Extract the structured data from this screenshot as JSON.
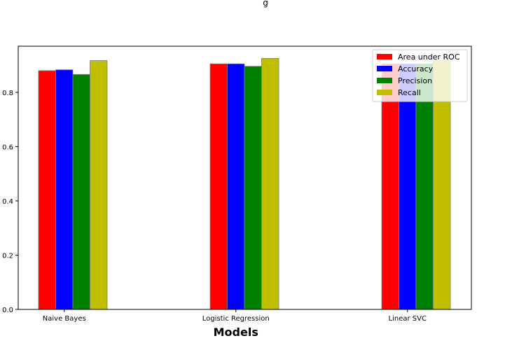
{
  "chart_data": {
    "type": "bar",
    "title": "",
    "xlabel": "Models",
    "ylabel": "",
    "categories": [
      "Naive Bayes",
      "Logistic Regression",
      "Linear SVC"
    ],
    "series": [
      {
        "name": "Area under ROC",
        "color": "#ff0000",
        "values": [
          0.88,
          0.905,
          0.905
        ]
      },
      {
        "name": "Accuracy",
        "color": "#0000ff",
        "values": [
          0.883,
          0.905,
          0.905
        ]
      },
      {
        "name": "Precision",
        "color": "#008000",
        "values": [
          0.866,
          0.896,
          0.905
        ]
      },
      {
        "name": "Recall",
        "color": "#bfbf00",
        "values": [
          0.917,
          0.925,
          0.917
        ]
      }
    ],
    "ylim": [
      0,
      0.97
    ],
    "yticks": [
      "0.0",
      "0.2",
      "0.4",
      "0.6",
      "0.8"
    ],
    "grid": false,
    "legend_position": "top-right",
    "top_text": "g"
  }
}
